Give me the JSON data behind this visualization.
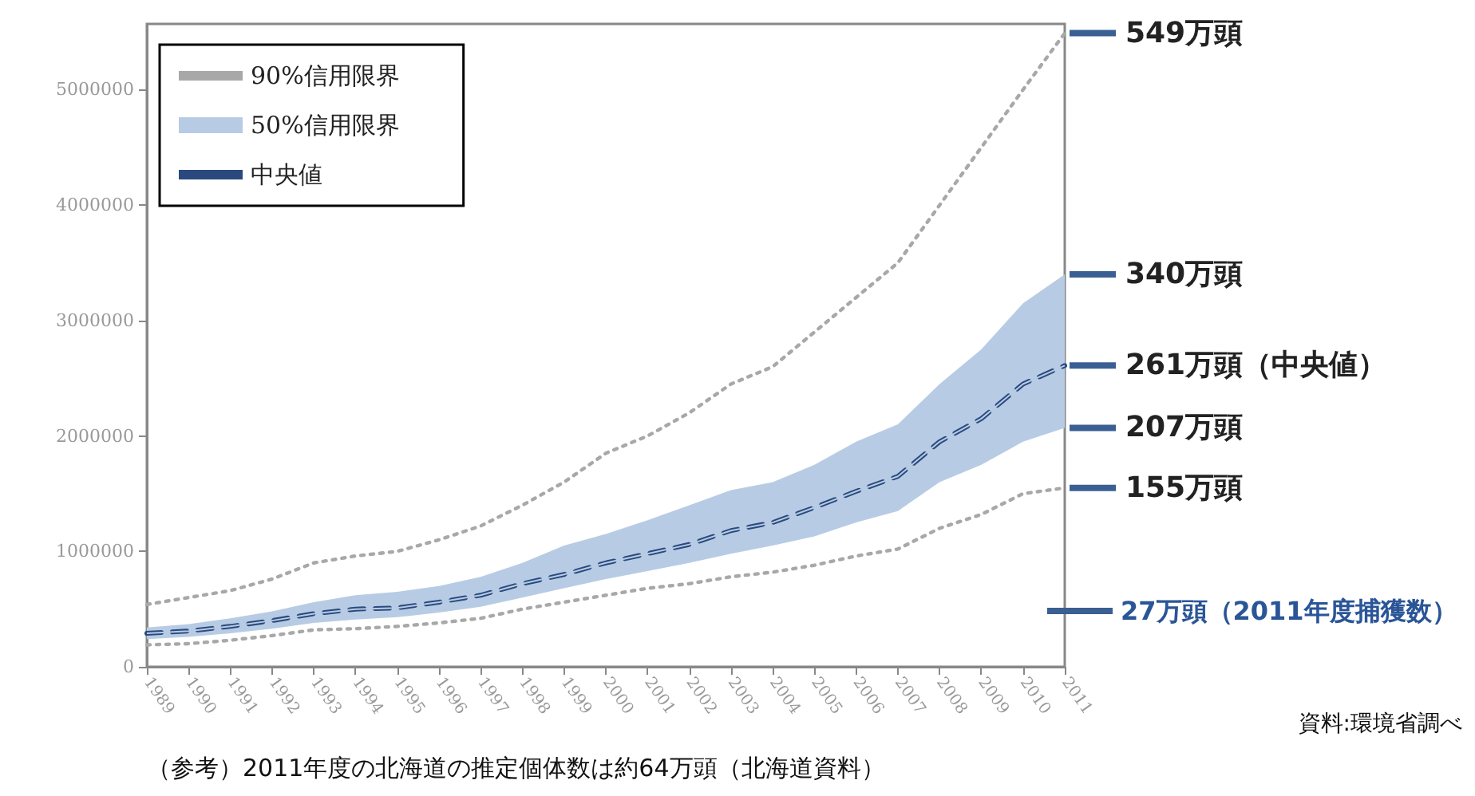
{
  "chart_data": {
    "type": "line",
    "categories": [
      "1989",
      "1990",
      "1991",
      "1992",
      "1993",
      "1994",
      "1995",
      "1996",
      "1997",
      "1998",
      "1999",
      "2000",
      "2001",
      "2002",
      "2003",
      "2004",
      "2005",
      "2006",
      "2007",
      "2008",
      "2009",
      "2010",
      "2011"
    ],
    "series": [
      {
        "name": "90%信用限界",
        "color": "#a8a8a8",
        "line_style": "dotted",
        "values": [
          540000,
          600000,
          660000,
          760000,
          900000,
          960000,
          1000000,
          1100000,
          1220000,
          1400000,
          1600000,
          1850000,
          2000000,
          2200000,
          2450000,
          2600000,
          2900000,
          3200000,
          3500000,
          4000000,
          4500000,
          5000000,
          5490000
        ]
      },
      {
        "name": "50%信用限界",
        "type": "line",
        "color": "#b7cce4",
        "lower": [
          240000,
          260000,
          290000,
          330000,
          380000,
          410000,
          430000,
          470000,
          520000,
          600000,
          680000,
          760000,
          830000,
          900000,
          980000,
          1050000,
          1130000,
          1250000,
          1350000,
          1600000,
          1750000,
          1950000,
          2070000
        ],
        "upper": [
          340000,
          370000,
          420000,
          480000,
          560000,
          620000,
          650000,
          700000,
          780000,
          900000,
          1050000,
          1150000,
          1270000,
          1400000,
          1530000,
          1600000,
          1750000,
          1950000,
          2100000,
          2450000,
          2750000,
          3150000,
          3400000
        ],
        "values": [
          290000,
          310000,
          350000,
          400000,
          460000,
          500000,
          510000,
          560000,
          620000,
          720000,
          800000,
          900000,
          980000,
          1060000,
          1180000,
          1250000,
          1380000,
          1520000,
          1650000,
          1950000,
          2150000,
          2450000,
          2610000
        ]
      },
      {
        "name": "中央値",
        "color": "#2a4a7f",
        "line_style": "dashed",
        "values": [
          290000,
          310000,
          350000,
          400000,
          460000,
          500000,
          510000,
          560000,
          620000,
          720000,
          800000,
          900000,
          980000,
          1060000,
          1180000,
          1250000,
          1380000,
          1520000,
          1650000,
          1950000,
          2150000,
          2450000,
          2610000
        ]
      },
      {
        "color": "#a8a8a8",
        "line_style": "dotted",
        "values": [
          190000,
          200000,
          230000,
          270000,
          320000,
          330000,
          350000,
          380000,
          420000,
          500000,
          560000,
          620000,
          680000,
          720000,
          780000,
          820000,
          880000,
          960000,
          1020000,
          1200000,
          1320000,
          1500000,
          1550000
        ]
      }
    ],
    "ylim": [
      0,
      5570000
    ],
    "yticks": [
      0,
      1000000,
      2000000,
      3000000,
      4000000,
      5000000
    ],
    "grid": false,
    "legend": "top left",
    "marker": "none",
    "annotations": [
      {
        "text": "549万頭",
        "x": "2011",
        "y": 5490000
      },
      {
        "text": "340万頭",
        "x": "2011",
        "y": 3400000
      },
      {
        "text": "261万頭（中央値）",
        "x": "2011",
        "y": 2610000
      },
      {
        "text": "207万頭",
        "x": "2011",
        "y": 2070000
      },
      {
        "text": "155万頭",
        "x": "2011",
        "y": 1550000
      },
      "27万頭（2011年度捕獲数）",
      "資料:環境省調べ",
      "（参考）2011年度の北海道の推定個体数は約64万頭（北海道資料）"
    ]
  }
}
